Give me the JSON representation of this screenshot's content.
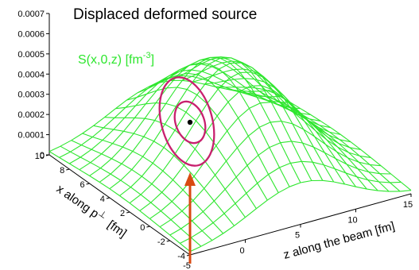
{
  "chart_data": {
    "type": "surface",
    "title": "Displaced deformed source",
    "function_label": {
      "main": "S(x,0,z) [fm",
      "exponent": "-3",
      "close": "]"
    },
    "zlim": [
      0,
      0.0007
    ],
    "z_ticks": [
      "0",
      "0.0001",
      "0.0002",
      "0.0003",
      "0.0004",
      "0.0005",
      "0.0006",
      "0.0007"
    ],
    "x_axis": {
      "label_main": "x along p",
      "label_sup": "⊥",
      "label_unit": "[fm]",
      "range": [
        -4,
        10
      ],
      "ticks": [
        "10",
        "8",
        "6",
        "4",
        "2",
        "0",
        "-2",
        "-4"
      ]
    },
    "z_axis": {
      "label": "z along the beam [fm]",
      "range": [
        -5,
        15
      ],
      "ticks": [
        "-5",
        "0",
        "5",
        "10",
        "15"
      ]
    },
    "surface": {
      "peak_value": 0.00055,
      "center_x": 3,
      "center_z": 5
    },
    "overlay": {
      "marker": "source-center",
      "contours": 2,
      "arrow": "pointing to source center"
    },
    "colors": {
      "mesh": "#2ee62e",
      "contour": "#c8206e",
      "arrow": "#d94a12",
      "marker": "#000000"
    }
  }
}
